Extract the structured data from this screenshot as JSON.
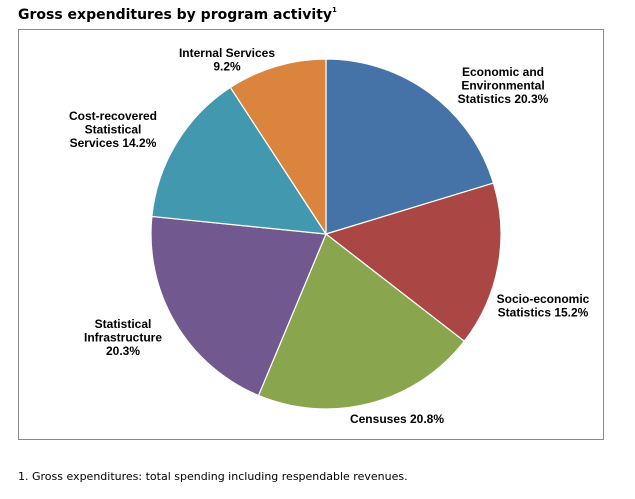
{
  "title": "Gross expenditures by program activity",
  "title_footnote_mark": "1",
  "footnote": "1. Gross expenditures: total spending including respendable revenues.",
  "chart_data": {
    "type": "pie",
    "title": "Gross expenditures by program activity",
    "unit": "%",
    "legend": "none",
    "slices": [
      {
        "label_lines": [
          "Economic and",
          "Environmental",
          "Statistics 20.3%"
        ],
        "name": "Economic and Environmental Statistics",
        "value": 20.3,
        "color": "#4572A7"
      },
      {
        "label_lines": [
          "Socio-economic",
          "Statistics 15.2%"
        ],
        "name": "Socio-economic Statistics",
        "value": 15.2,
        "color": "#AA4643"
      },
      {
        "label_lines": [
          "Censuses 20.8%"
        ],
        "name": "Censuses",
        "value": 20.8,
        "color": "#89A54E"
      },
      {
        "label_lines": [
          "Statistical",
          "Infrastructure",
          "20.3%"
        ],
        "name": "Statistical Infrastructure",
        "value": 20.3,
        "color": "#71588F"
      },
      {
        "label_lines": [
          "Cost-recovered",
          "Statistical",
          "Services 14.2%"
        ],
        "name": "Cost-recovered Statistical Services",
        "value": 14.2,
        "color": "#4198AF"
      },
      {
        "label_lines": [
          "Internal Services",
          "9.2%"
        ],
        "name": "Internal Services",
        "value": 9.2,
        "color": "#DB843D"
      }
    ]
  }
}
